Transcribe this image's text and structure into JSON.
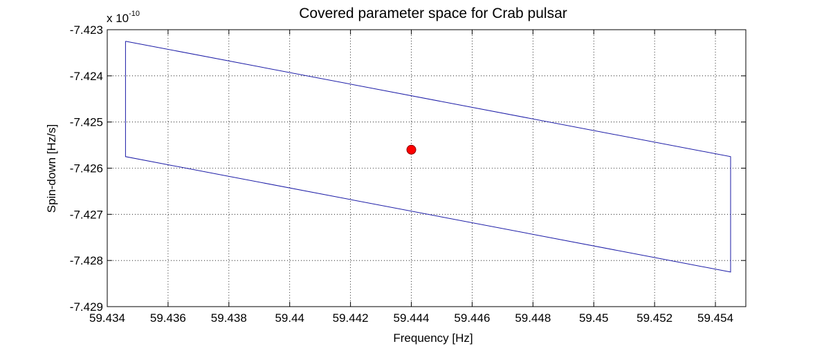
{
  "chart_data": {
    "type": "line",
    "title": "Covered parameter space for Crab pulsar",
    "xlabel": "Frequency [Hz]",
    "ylabel": "Spin-down [Hz/s]",
    "y_multiplier": {
      "base": "x 10",
      "exponent": "-10"
    },
    "xlim": [
      59.434,
      59.455
    ],
    "ylim": [
      -7.429,
      -7.423
    ],
    "x_ticks": [
      59.434,
      59.436,
      59.438,
      59.44,
      59.442,
      59.444,
      59.446,
      59.448,
      59.45,
      59.452,
      59.454
    ],
    "x_tick_labels": [
      "59.434",
      "59.436",
      "59.438",
      "59.44",
      "59.442",
      "59.444",
      "59.446",
      "59.448",
      "59.45",
      "59.452",
      "59.454"
    ],
    "y_ticks": [
      -7.423,
      -7.424,
      -7.425,
      -7.426,
      -7.427,
      -7.428,
      -7.429
    ],
    "y_tick_labels": [
      "-7.423",
      "-7.424",
      "-7.425",
      "-7.426",
      "-7.427",
      "-7.428",
      "-7.429"
    ],
    "grid": true,
    "series": [
      {
        "type": "line",
        "color": "#1a1aa6",
        "x": [
          59.4346,
          59.4545,
          59.4545,
          59.4346,
          59.4346
        ],
        "y": [
          -7.42325,
          -7.42575,
          -7.42825,
          -7.42575,
          -7.42325
        ]
      },
      {
        "type": "scatter",
        "color": "#ff0000",
        "x": [
          59.444
        ],
        "y": [
          -7.4256
        ]
      }
    ]
  }
}
